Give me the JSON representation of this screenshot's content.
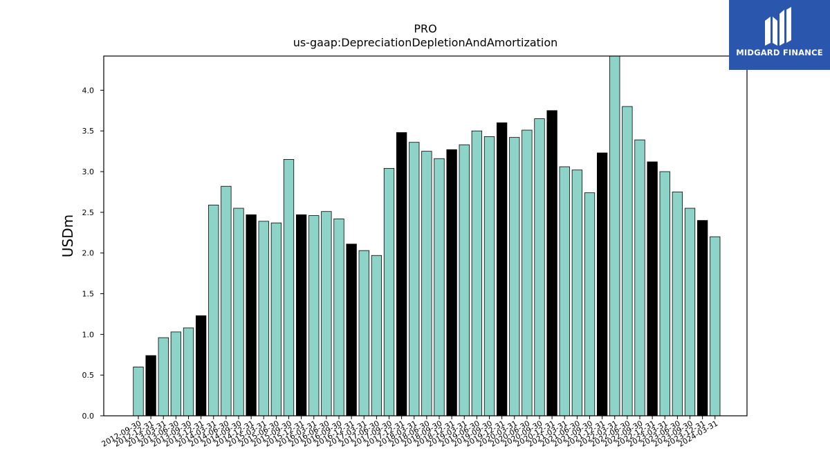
{
  "chart_data": {
    "type": "bar",
    "title": "PRO",
    "subtitle": "us-gaap:DepreciationDepletionAndAmortization",
    "xlabel": "",
    "ylabel": "USDm",
    "ylim": [
      0,
      4.42
    ],
    "yticks": [
      "0.0",
      "0.5",
      "1.0",
      "1.5",
      "2.0",
      "2.5",
      "3.0",
      "3.5",
      "4.0"
    ],
    "colors": {
      "quarter": "#8dd3c7",
      "year_end": "#000000",
      "edge": "#000000"
    },
    "grid": false,
    "legend": "none",
    "categories": [
      "2012-09-30",
      "2012-12-31",
      "2013-03-31",
      "2013-06-30",
      "2013-09-30",
      "2013-12-31",
      "2014-03-31",
      "2014-06-30",
      "2014-09-30",
      "2014-12-31",
      "2015-03-31",
      "2015-06-30",
      "2015-09-30",
      "2015-12-31",
      "2016-03-31",
      "2016-06-30",
      "2016-09-30",
      "2016-12-31",
      "2017-03-31",
      "2017-06-30",
      "2017-09-30",
      "2017-12-31",
      "2018-03-31",
      "2018-06-30",
      "2018-09-30",
      "2018-12-31",
      "2019-03-31",
      "2019-06-30",
      "2019-09-30",
      "2019-12-31",
      "2020-03-31",
      "2020-06-30",
      "2020-09-30",
      "2020-12-31",
      "2021-03-31",
      "2021-06-30",
      "2021-09-30",
      "2021-12-31",
      "2022-03-31",
      "2022-06-30",
      "2022-09-30",
      "2022-12-31",
      "2023-03-31",
      "2023-06-30",
      "2023-09-30",
      "2023-12-31",
      "2024-03-31"
    ],
    "values": [
      0.6,
      0.74,
      0.96,
      1.03,
      1.08,
      1.23,
      2.59,
      2.82,
      2.55,
      2.47,
      2.39,
      2.37,
      3.15,
      2.47,
      2.46,
      2.51,
      2.42,
      2.11,
      2.03,
      1.97,
      3.04,
      3.48,
      3.36,
      3.25,
      3.16,
      3.27,
      3.33,
      3.5,
      3.43,
      3.6,
      3.42,
      3.51,
      3.65,
      3.75,
      3.06,
      3.02,
      2.74,
      3.23,
      4.45,
      3.8,
      3.39,
      3.12,
      3.0,
      2.75,
      2.55,
      2.4,
      2.2
    ]
  },
  "logo": {
    "brand": "MIDGARD FINANCE"
  }
}
